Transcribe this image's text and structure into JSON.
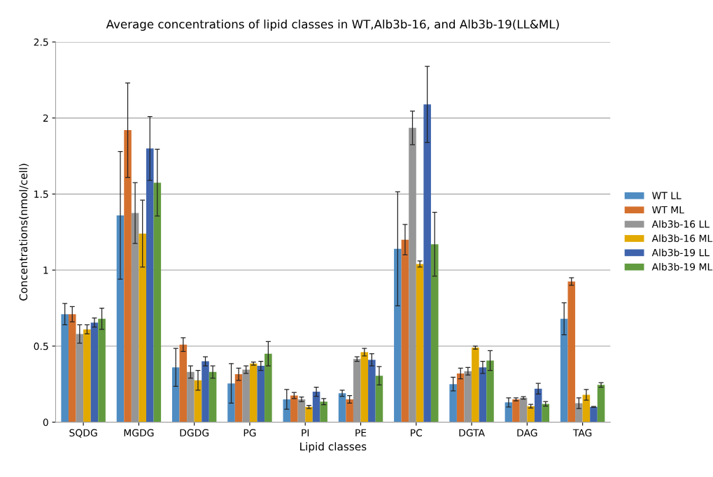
{
  "chart_data": {
    "type": "bar",
    "title": "Average concentrations of lipid classes in WT,Alb3b-16, and Alb3b-19(LL&ML)",
    "xlabel": "Lipid classes",
    "ylabel": "Concentrations(nmol/cell)",
    "categories": [
      "SQDG",
      "MGDG",
      "DGDG",
      "PG",
      "PI",
      "PE",
      "PC",
      "DGTA",
      "DAG",
      "TAG"
    ],
    "series": [
      {
        "name": "WT LL",
        "color": "#4f8cc2",
        "values": [
          0.71,
          1.36,
          0.36,
          0.255,
          0.15,
          0.19,
          1.14,
          0.25,
          0.13,
          0.68
        ],
        "errors": [
          0.07,
          0.42,
          0.125,
          0.13,
          0.065,
          0.02,
          0.375,
          0.045,
          0.03,
          0.105
        ]
      },
      {
        "name": "WT ML",
        "color": "#d4702e",
        "values": [
          0.71,
          1.92,
          0.51,
          0.315,
          0.175,
          0.15,
          1.2,
          0.32,
          0.15,
          0.925
        ],
        "errors": [
          0.05,
          0.31,
          0.045,
          0.04,
          0.02,
          0.025,
          0.1,
          0.035,
          0.01,
          0.025
        ]
      },
      {
        "name": "Alb3b-16 LL",
        "color": "#969696",
        "values": [
          0.58,
          1.375,
          0.33,
          0.345,
          0.15,
          0.415,
          1.935,
          0.335,
          0.16,
          0.125
        ],
        "errors": [
          0.06,
          0.2,
          0.04,
          0.025,
          0.015,
          0.015,
          0.11,
          0.025,
          0.008,
          0.035
        ]
      },
      {
        "name": "Alb3b-16 ML",
        "color": "#e2a900",
        "values": [
          0.61,
          1.24,
          0.275,
          0.385,
          0.1,
          0.46,
          1.04,
          0.49,
          0.105,
          0.18
        ],
        "errors": [
          0.03,
          0.22,
          0.065,
          0.01,
          0.01,
          0.025,
          0.02,
          0.01,
          0.012,
          0.035
        ]
      },
      {
        "name": "Alb3b-19 LL",
        "color": "#3f64ad",
        "values": [
          0.655,
          1.8,
          0.4,
          0.37,
          0.2,
          0.41,
          2.09,
          0.36,
          0.22,
          0.1
        ],
        "errors": [
          0.03,
          0.21,
          0.03,
          0.03,
          0.03,
          0.04,
          0.25,
          0.04,
          0.035,
          0.003
        ]
      },
      {
        "name": "Alb3b-19 ML",
        "color": "#629b3f",
        "values": [
          0.68,
          1.575,
          0.33,
          0.45,
          0.135,
          0.305,
          1.17,
          0.405,
          0.12,
          0.245
        ],
        "errors": [
          0.07,
          0.22,
          0.04,
          0.08,
          0.02,
          0.06,
          0.21,
          0.065,
          0.015,
          0.015
        ]
      }
    ],
    "ylim": [
      0,
      2.5
    ],
    "yticks": [
      0,
      0.5,
      1,
      1.5,
      2,
      2.5
    ],
    "grid": "y",
    "legend": "right"
  }
}
